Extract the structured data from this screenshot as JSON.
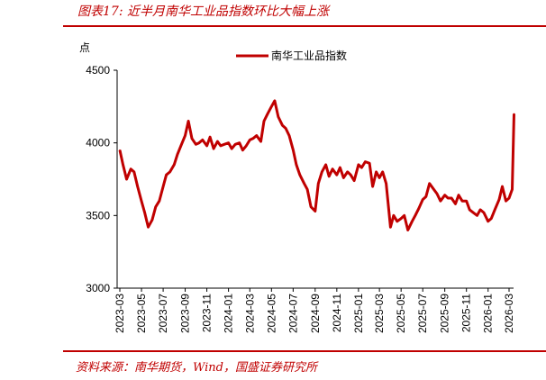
{
  "figure": {
    "caption": "图表17: 近半月南华工业品指数环比大幅上涨",
    "source": "资料来源：南华期货，Wind，国盛证券研究所"
  },
  "chart_data": {
    "type": "line",
    "title": "",
    "ylabel": "点",
    "xlabel": "",
    "ylim": [
      3000,
      4500
    ],
    "yticks": [
      "4500",
      "4000",
      "3500",
      "3000"
    ],
    "xticks": [
      "2023-03",
      "2023-05",
      "2023-07",
      "2023-09",
      "2023-11",
      "2024-01",
      "2024-03",
      "2024-05",
      "2024-07",
      "2024-09",
      "2024-11",
      "2025-01",
      "2025-03",
      "2025-05",
      "2025-07",
      "2025-09",
      "2025-11",
      "2026-01",
      "2026-03"
    ],
    "legend": "top-center",
    "grid": false,
    "color": "#c00000",
    "series": [
      {
        "name": "南华工业品指数",
        "x": [
          "2023-03-01",
          "2023-03-10",
          "2023-03-20",
          "2023-04-01",
          "2023-04-10",
          "2023-04-20",
          "2023-05-01",
          "2023-05-10",
          "2023-05-20",
          "2023-05-31",
          "2023-06-10",
          "2023-06-20",
          "2023-07-01",
          "2023-07-10",
          "2023-07-20",
          "2023-08-01",
          "2023-08-10",
          "2023-08-20",
          "2023-09-01",
          "2023-09-10",
          "2023-09-20",
          "2023-10-01",
          "2023-10-10",
          "2023-10-20",
          "2023-11-01",
          "2023-11-10",
          "2023-11-20",
          "2023-12-01",
          "2023-12-10",
          "2023-12-20",
          "2024-01-01",
          "2024-01-10",
          "2024-01-20",
          "2024-02-01",
          "2024-02-10",
          "2024-02-20",
          "2024-03-01",
          "2024-03-10",
          "2024-03-20",
          "2024-04-01",
          "2024-04-10",
          "2024-04-20",
          "2024-05-01",
          "2024-05-10",
          "2024-05-20",
          "2024-06-01",
          "2024-06-10",
          "2024-06-20",
          "2024-07-01",
          "2024-07-10",
          "2024-07-20",
          "2024-08-01",
          "2024-08-10",
          "2024-08-20",
          "2024-09-01",
          "2024-09-10",
          "2024-09-20",
          "2024-10-01",
          "2024-10-10",
          "2024-10-20",
          "2024-11-01",
          "2024-11-10",
          "2024-11-20",
          "2024-12-01",
          "2024-12-10",
          "2024-12-20",
          "2025-01-01",
          "2025-01-10",
          "2025-01-20",
          "2025-02-01",
          "2025-02-10",
          "2025-02-20",
          "2025-03-01",
          "2025-03-10",
          "2025-03-20",
          "2025-04-01",
          "2025-04-10",
          "2025-04-20",
          "2025-05-01",
          "2025-05-10",
          "2025-05-20",
          "2025-06-01",
          "2025-06-10",
          "2025-06-20",
          "2025-07-01",
          "2025-07-10",
          "2025-07-20",
          "2025-08-01",
          "2025-08-10",
          "2025-08-20",
          "2025-09-01",
          "2025-09-10",
          "2025-09-20",
          "2025-10-01",
          "2025-10-10",
          "2025-10-20",
          "2025-11-01",
          "2025-11-10",
          "2025-11-20",
          "2025-12-01",
          "2025-12-10",
          "2025-12-20",
          "2026-01-01",
          "2026-01-10",
          "2026-01-20",
          "2026-02-01",
          "2026-02-10",
          "2026-02-20",
          "2026-03-01",
          "2026-03-10",
          "2026-03-15"
        ],
        "values": [
          3950,
          3850,
          3750,
          3820,
          3800,
          3700,
          3600,
          3520,
          3420,
          3470,
          3560,
          3600,
          3700,
          3780,
          3800,
          3850,
          3920,
          3980,
          4050,
          4150,
          4030,
          3990,
          4000,
          4020,
          3980,
          4040,
          3960,
          4010,
          3980,
          3990,
          4000,
          3960,
          3990,
          4000,
          3950,
          3980,
          4020,
          4030,
          4050,
          4010,
          4150,
          4200,
          4250,
          4290,
          4180,
          4120,
          4100,
          4050,
          3950,
          3850,
          3780,
          3720,
          3680,
          3560,
          3530,
          3720,
          3800,
          3850,
          3770,
          3820,
          3780,
          3830,
          3760,
          3800,
          3780,
          3740,
          3850,
          3830,
          3870,
          3860,
          3700,
          3800,
          3760,
          3800,
          3720,
          3420,
          3500,
          3460,
          3480,
          3500,
          3400,
          3460,
          3500,
          3550,
          3610,
          3630,
          3720,
          3680,
          3650,
          3600,
          3640,
          3620,
          3620,
          3580,
          3640,
          3600,
          3600,
          3540,
          3520,
          3500,
          3540,
          3520,
          3460,
          3480,
          3540,
          3610,
          3700,
          3600,
          3620,
          3680,
          4200
        ]
      }
    ]
  }
}
